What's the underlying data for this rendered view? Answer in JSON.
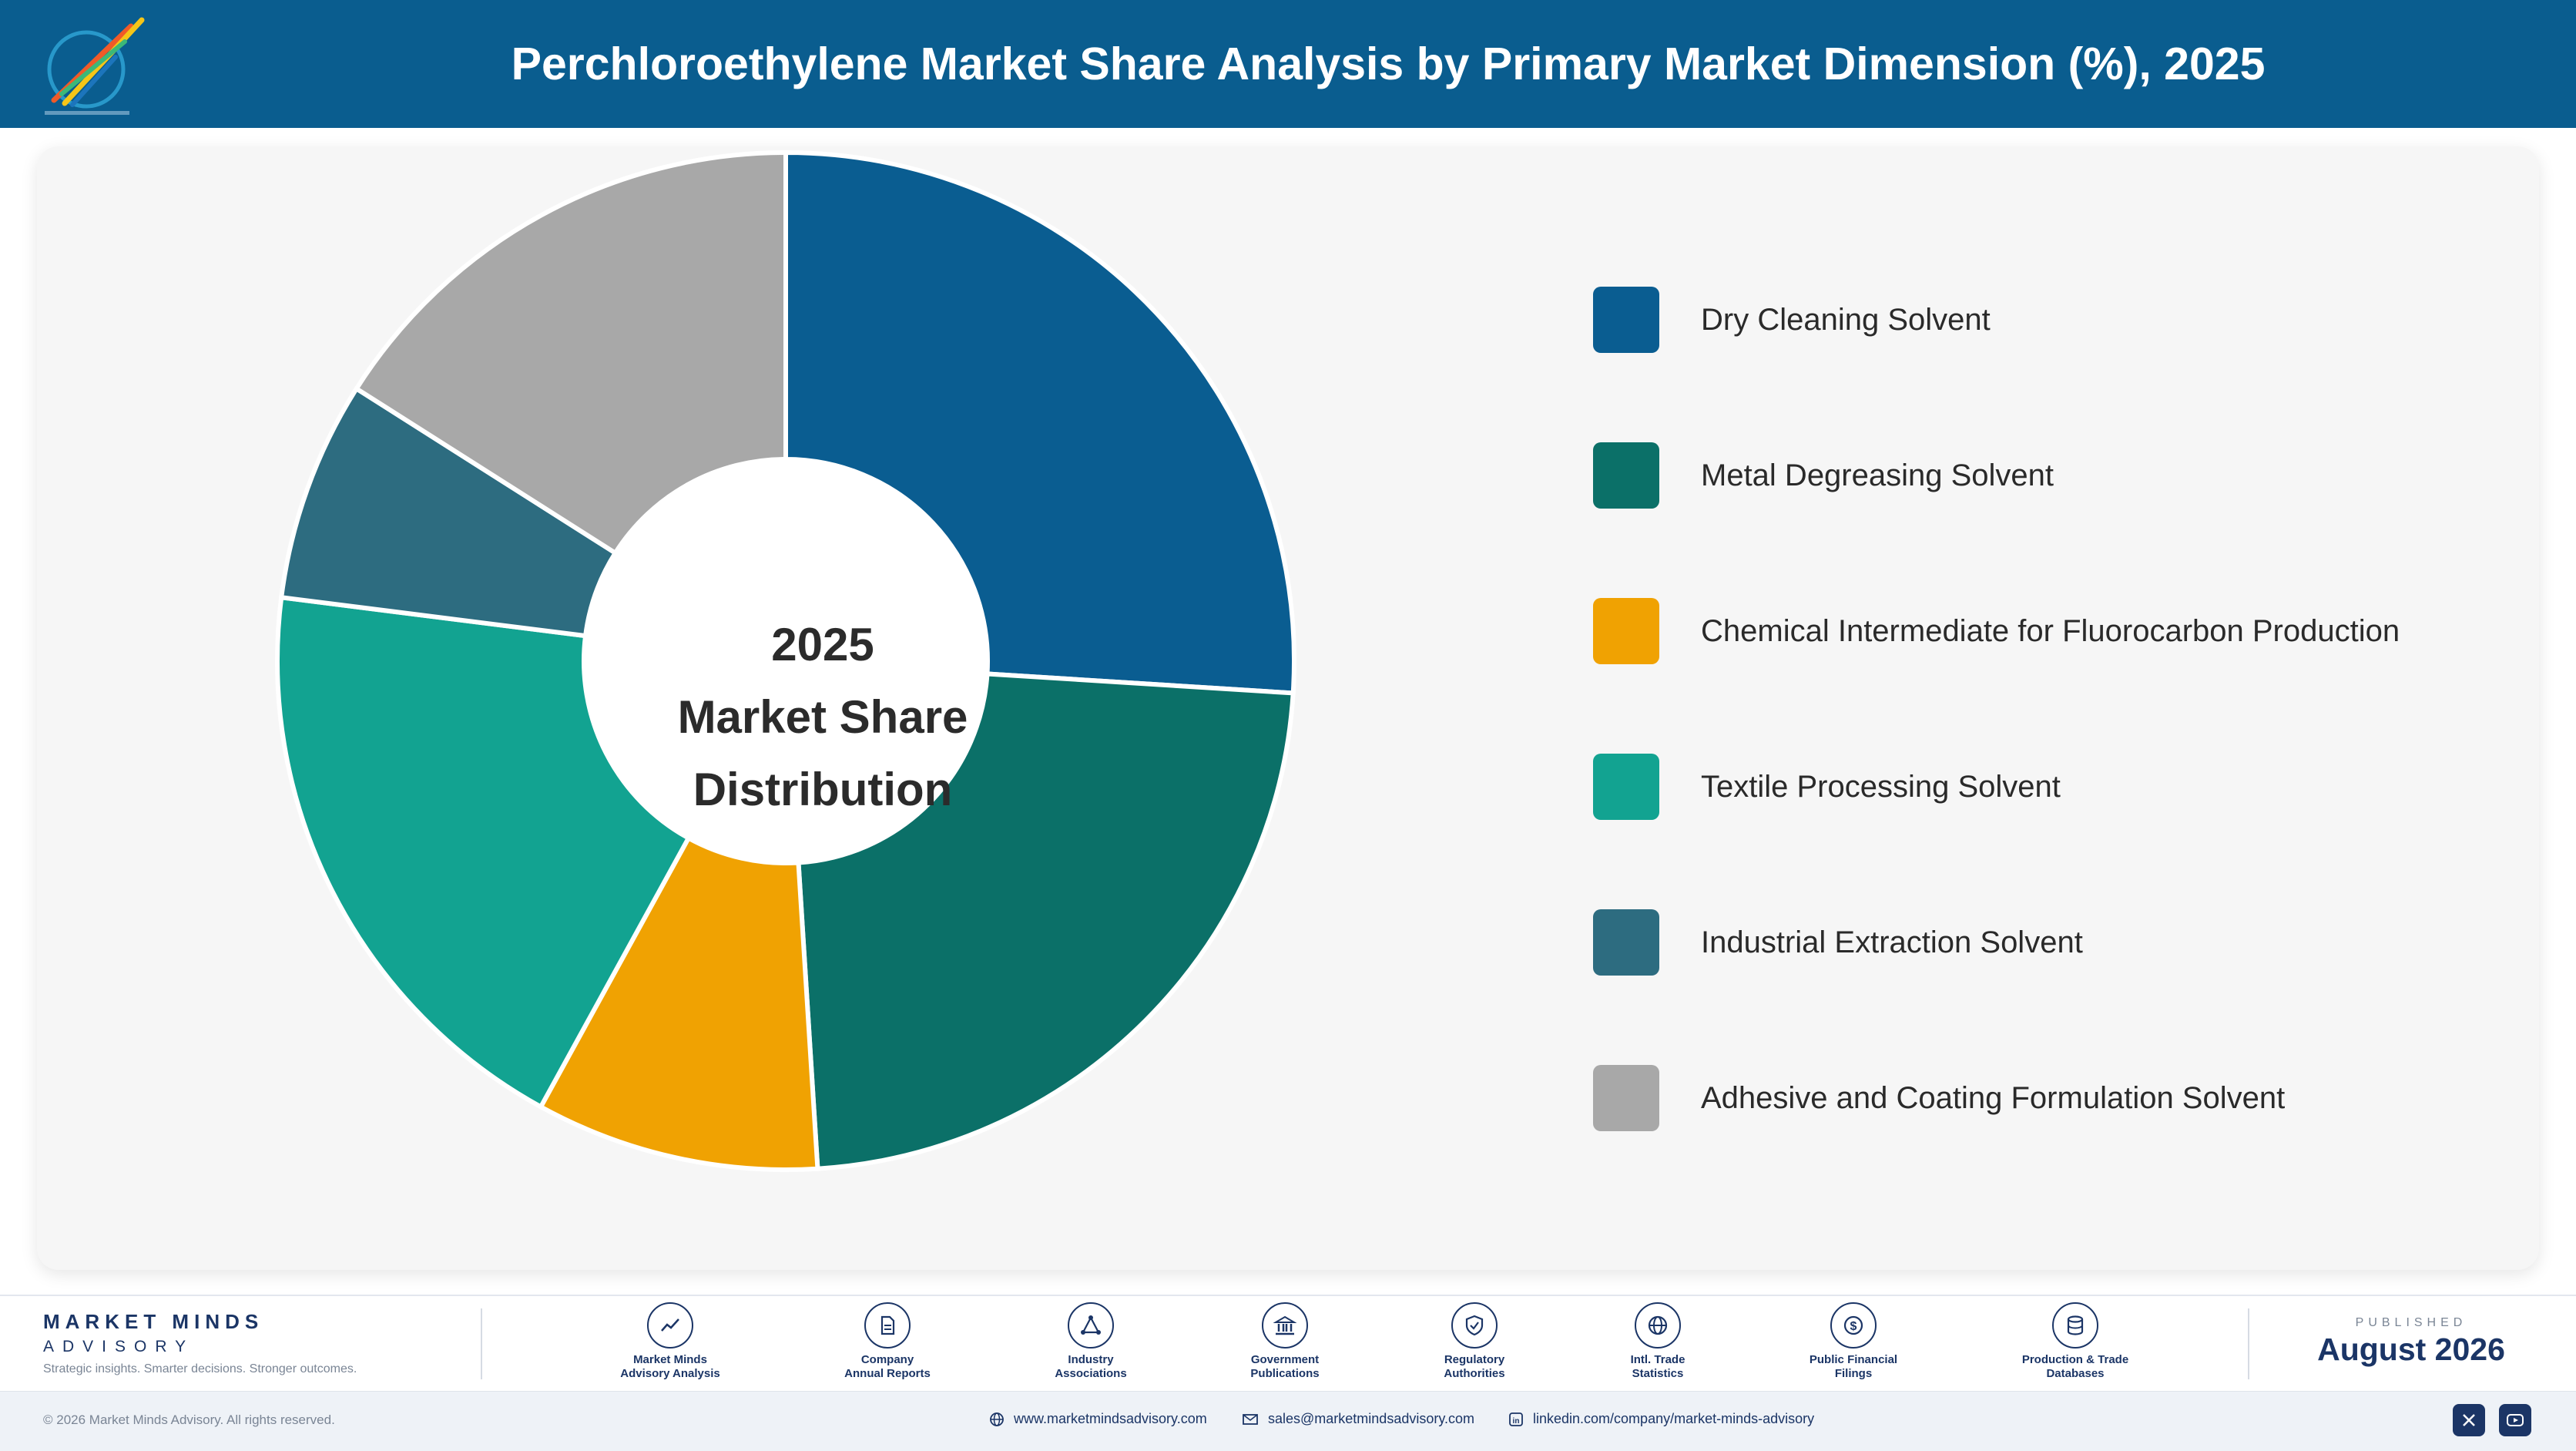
{
  "header": {
    "title": "Perchloroethylene Market Share Analysis by Primary Market Dimension (%), 2025"
  },
  "chart_data": {
    "type": "pie",
    "center_label": [
      "2025",
      "Market Share",
      "Distribution"
    ],
    "categories": [
      "Dry Cleaning Solvent",
      "Metal Degreasing Solvent",
      "Chemical Intermediate for Fluorocarbon Production",
      "Textile Processing Solvent",
      "Industrial Extraction Solvent",
      "Adhesive and Coating Formulation Solvent"
    ],
    "values": [
      26,
      23,
      9,
      19,
      7,
      16
    ],
    "colors": [
      "#0a5d91",
      "#0b7068",
      "#f0a202",
      "#12a391",
      "#2d6c80",
      "#a8a8a8"
    ],
    "legend_position": "right"
  },
  "footer": {
    "brand_name": "MARKET MINDS",
    "brand_sub": "ADVISORY",
    "tagline": "Strategic insights. Smarter decisions. Stronger outcomes.",
    "sources": [
      {
        "label": "Market Minds\nAdvisory Analysis",
        "icon": "trend-chart-icon"
      },
      {
        "label": "Company\nAnnual Reports",
        "icon": "document-icon"
      },
      {
        "label": "Industry\nAssociations",
        "icon": "network-icon"
      },
      {
        "label": "Government\nPublications",
        "icon": "government-building-icon"
      },
      {
        "label": "Regulatory\nAuthorities",
        "icon": "shield-check-icon"
      },
      {
        "label": "Intl. Trade\nStatistics",
        "icon": "globe-icon"
      },
      {
        "label": "Public Financial\nFilings",
        "icon": "currency-coin-icon"
      },
      {
        "label": "Production & Trade\nDatabases",
        "icon": "database-icon"
      }
    ],
    "published_label": "PUBLISHED",
    "published_date": "August 2026"
  },
  "bottom_bar": {
    "copyright": "© 2026 Market Minds Advisory. All rights reserved.",
    "website": "www.marketmindsadvisory.com",
    "email": "sales@marketmindsadvisory.com",
    "linkedin": "linkedin.com/company/market-minds-advisory"
  }
}
